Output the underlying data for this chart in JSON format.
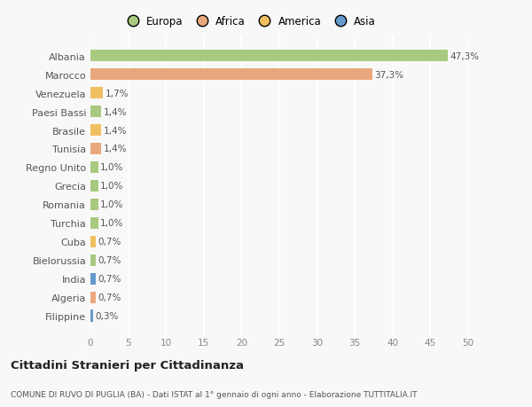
{
  "categories": [
    "Albania",
    "Marocco",
    "Venezuela",
    "Paesi Bassi",
    "Brasile",
    "Tunisia",
    "Regno Unito",
    "Grecia",
    "Romania",
    "Turchia",
    "Cuba",
    "Bielorussia",
    "India",
    "Algeria",
    "Filippine"
  ],
  "values": [
    47.3,
    37.3,
    1.7,
    1.4,
    1.4,
    1.4,
    1.0,
    1.0,
    1.0,
    1.0,
    0.7,
    0.7,
    0.7,
    0.7,
    0.3
  ],
  "labels": [
    "47,3%",
    "37,3%",
    "1,7%",
    "1,4%",
    "1,4%",
    "1,4%",
    "1,0%",
    "1,0%",
    "1,0%",
    "1,0%",
    "0,7%",
    "0,7%",
    "0,7%",
    "0,7%",
    "0,3%"
  ],
  "colors": [
    "#a8c97f",
    "#e8a87c",
    "#f0c060",
    "#a8c97f",
    "#f0c060",
    "#e8a87c",
    "#a8c97f",
    "#a8c97f",
    "#a8c97f",
    "#a8c97f",
    "#f0c060",
    "#a8c97f",
    "#6699cc",
    "#e8a87c",
    "#6699cc"
  ],
  "legend_labels": [
    "Europa",
    "Africa",
    "America",
    "Asia"
  ],
  "legend_colors": [
    "#a8c97f",
    "#e8a87c",
    "#f0c060",
    "#6699cc"
  ],
  "xlim": [
    0,
    50
  ],
  "xticks": [
    0,
    5,
    10,
    15,
    20,
    25,
    30,
    35,
    40,
    45,
    50
  ],
  "title": "Cittadini Stranieri per Cittadinanza",
  "subtitle": "COMUNE DI RUVO DI PUGLIA (BA) - Dati ISTAT al 1° gennaio di ogni anno - Elaborazione TUTTITALIA.IT",
  "bg_color": "#f8f8f8",
  "grid_color": "#ffffff"
}
